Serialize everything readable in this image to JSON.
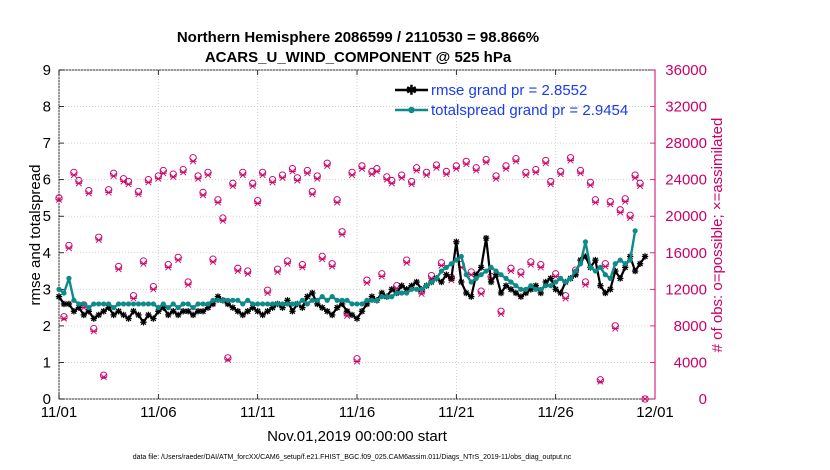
{
  "chart_data": {
    "type": "line",
    "title_line1": "Northern Hemisphere 2086599 / 2110530 = 98.866%",
    "title_line2": "ACARS_U_WIND_COMPONENT @ 525 hPa",
    "xlabel": "Nov.01,2019 00:00:00 start",
    "ylabel_left": "rmse and totalspread",
    "ylabel_right": "# of obs: o=possible; ×=assimilated",
    "footnote": "data file: /Users/raeder/DAI/ATM_forcXX/CAM6_setup/f.e21.FHIST_BGC.f09_025.CAM6assim.011/Diags_NTrS_2019-11/obs_diag_output.nc",
    "x_ticks": [
      "11/01",
      "11/06",
      "11/11",
      "11/16",
      "11/21",
      "11/26",
      "12/01"
    ],
    "x_tick_days": [
      0,
      5,
      10,
      15,
      20,
      25,
      30
    ],
    "xlim": [
      0,
      30
    ],
    "ylim_left": [
      0,
      9
    ],
    "y_ticks_left": [
      "0",
      "1",
      "2",
      "3",
      "4",
      "5",
      "6",
      "7",
      "8",
      "9"
    ],
    "ylim_right": [
      0,
      36000
    ],
    "y_ticks_right": [
      "0",
      "4000",
      "8000",
      "12000",
      "16000",
      "20000",
      "24000",
      "28000",
      "32000",
      "36000"
    ],
    "series": [
      {
        "name": "rmse",
        "legend": "rmse grand pr = 2.8552",
        "color": "#000000",
        "marker": "star",
        "x_start": 0,
        "x_step": 0.25,
        "values": [
          2.8,
          2.6,
          2.6,
          2.4,
          2.5,
          2.3,
          2.4,
          2.2,
          2.3,
          2.4,
          2.5,
          2.3,
          2.4,
          2.3,
          2.2,
          2.4,
          2.3,
          2.1,
          2.3,
          2.2,
          2.4,
          2.5,
          2.3,
          2.4,
          2.3,
          2.4,
          2.4,
          2.3,
          2.4,
          2.4,
          2.5,
          2.6,
          2.8,
          2.7,
          2.6,
          2.5,
          2.4,
          2.3,
          2.4,
          2.5,
          2.4,
          2.3,
          2.4,
          2.5,
          2.6,
          2.5,
          2.7,
          2.4,
          2.6,
          2.5,
          2.8,
          2.9,
          2.6,
          2.5,
          2.4,
          2.3,
          2.5,
          2.6,
          2.4,
          2.3,
          2.2,
          2.4,
          2.6,
          2.8,
          2.7,
          2.9,
          2.8,
          3.0,
          2.9,
          3.1,
          3.0,
          3.1,
          3.2,
          3.0,
          3.1,
          3.2,
          3.3,
          3.2,
          3.4,
          3.3,
          4.3,
          3.2,
          2.9,
          2.8,
          3.4,
          3.6,
          4.4,
          3.2,
          3.4,
          2.9,
          3.1,
          3.0,
          2.9,
          2.8,
          2.9,
          3.0,
          3.1,
          2.9,
          3.2,
          3.3,
          3.0,
          2.9,
          3.2,
          3.3,
          3.4,
          3.8,
          3.9,
          3.6,
          3.8,
          3.1,
          2.9,
          3.0,
          3.5,
          3.3,
          3.6,
          3.9,
          3.5,
          3.7,
          3.9
        ]
      },
      {
        "name": "totalspread",
        "legend": "totalspread grand pr = 2.9454",
        "color": "#0e8a8a",
        "marker": "circle",
        "x_start": 0,
        "x_step": 0.25,
        "values": [
          3.0,
          2.9,
          3.3,
          2.7,
          2.6,
          2.6,
          2.5,
          2.6,
          2.6,
          2.6,
          2.6,
          2.5,
          2.6,
          2.6,
          2.6,
          2.6,
          2.6,
          2.6,
          2.6,
          2.6,
          2.5,
          2.6,
          2.5,
          2.6,
          2.5,
          2.6,
          2.6,
          2.5,
          2.6,
          2.6,
          2.6,
          2.7,
          2.7,
          2.7,
          2.7,
          2.7,
          2.7,
          2.6,
          2.7,
          2.6,
          2.6,
          2.6,
          2.6,
          2.6,
          2.6,
          2.6,
          2.6,
          2.6,
          2.6,
          2.7,
          2.6,
          2.7,
          2.7,
          2.8,
          2.7,
          2.8,
          2.7,
          2.7,
          2.7,
          2.6,
          2.6,
          2.6,
          2.7,
          2.7,
          2.7,
          2.8,
          2.8,
          2.8,
          2.9,
          2.9,
          2.9,
          3.0,
          3.0,
          3.0,
          3.1,
          3.2,
          3.3,
          3.5,
          3.6,
          3.7,
          3.8,
          3.9,
          3.4,
          3.2,
          3.3,
          3.4,
          3.5,
          3.6,
          3.5,
          3.4,
          3.3,
          3.2,
          3.1,
          3.0,
          3.0,
          3.1,
          3.0,
          3.0,
          3.1,
          3.1,
          3.2,
          3.3,
          3.2,
          3.3,
          3.5,
          3.7,
          4.3,
          3.6,
          3.5,
          3.6,
          3.4,
          3.3,
          3.7,
          3.8,
          3.7,
          3.8,
          4.6
        ]
      },
      {
        "name": "obs_possible",
        "axis": "right",
        "color": "#cc0066",
        "marker": "open-circle",
        "x_start": 0,
        "x_step": 0.25,
        "values": [
          22000,
          9000,
          16800,
          24800,
          23900,
          10300,
          22800,
          7700,
          17700,
          2600,
          22900,
          24700,
          14500,
          24100,
          23800,
          11300,
          22700,
          15100,
          24000,
          12300,
          24400,
          25000,
          14700,
          24600,
          15500,
          25100,
          12800,
          26400,
          24400,
          22600,
          24800,
          15300,
          21800,
          19800,
          4500,
          23600,
          14300,
          24800,
          14000,
          23600,
          21700,
          24800,
          11900,
          24000,
          14200,
          24500,
          15100,
          25200,
          24200,
          14700,
          25000,
          22700,
          24400,
          15600,
          25800,
          14800,
          21800,
          18300,
          9400,
          24800,
          4400,
          25500,
          13000,
          24900,
          25200,
          13700,
          24300,
          23900,
          12400,
          24500,
          15200,
          23800,
          25300,
          11800,
          24800,
          13500,
          25600,
          14900,
          24900,
          13300,
          25500,
          14700,
          26000,
          13900,
          25300,
          11800,
          26200,
          13400,
          24400,
          9600,
          25500,
          14300,
          26300,
          13900,
          24800,
          15000,
          25100,
          14700,
          26100,
          23800,
          13700,
          24900,
          11300,
          26400,
          14100,
          25000,
          12800,
          23700,
          21800,
          2100,
          14800,
          21600,
          8000,
          20700,
          21900,
          20100,
          24500,
          23600,
          0
        ]
      },
      {
        "name": "obs_assimilated",
        "axis": "right",
        "color": "#cc0066",
        "marker": "cross",
        "x_start": 0,
        "x_step": 0.25,
        "values": [
          21800,
          8800,
          16500,
          24500,
          23600,
          10000,
          22500,
          7400,
          17400,
          2400,
          22600,
          24400,
          14200,
          23800,
          23500,
          11000,
          22400,
          14800,
          23700,
          12000,
          24100,
          24700,
          14400,
          24300,
          15200,
          24800,
          12500,
          26000,
          24100,
          22300,
          24500,
          15000,
          21500,
          19500,
          4300,
          23300,
          14000,
          24500,
          13700,
          23300,
          21400,
          24500,
          11600,
          23700,
          13900,
          24200,
          14800,
          24900,
          23900,
          14400,
          24700,
          22400,
          24100,
          15300,
          25500,
          14500,
          21500,
          18000,
          9100,
          24500,
          4100,
          25200,
          12700,
          24600,
          24900,
          13400,
          24000,
          23600,
          12100,
          24200,
          14900,
          23500,
          25000,
          11500,
          24500,
          13200,
          25300,
          14600,
          24600,
          13000,
          25200,
          14400,
          25700,
          13600,
          25000,
          11500,
          25900,
          13100,
          24100,
          9300,
          25200,
          14000,
          26000,
          13600,
          24500,
          14700,
          24800,
          14400,
          25800,
          23500,
          13400,
          24600,
          11000,
          26100,
          13800,
          24700,
          12500,
          23400,
          21500,
          1900,
          14500,
          21300,
          7700,
          20400,
          21600,
          19800,
          24200,
          23300,
          0
        ]
      }
    ]
  }
}
